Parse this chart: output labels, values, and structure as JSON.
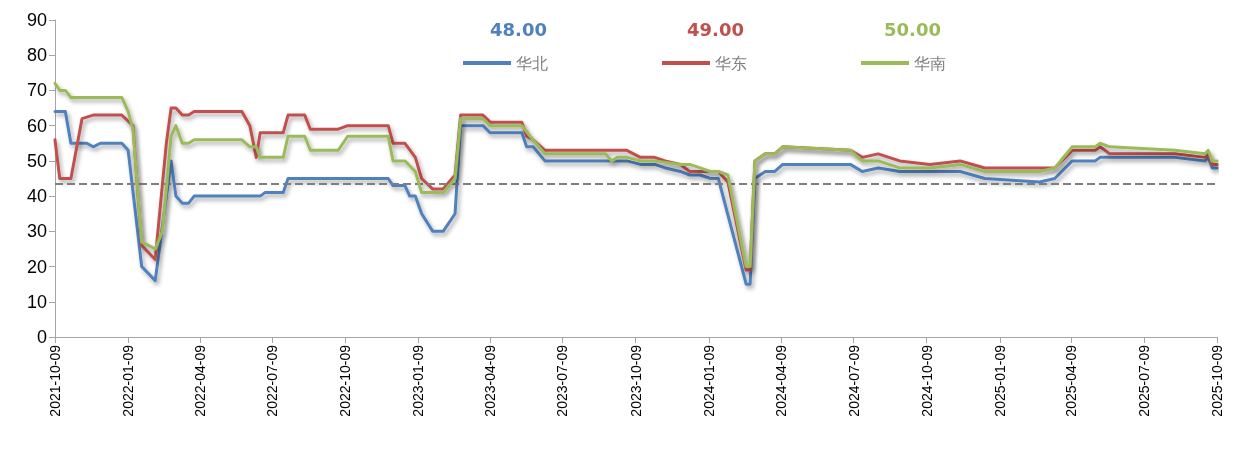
{
  "chart_data": {
    "type": "line",
    "legend": "top",
    "annotations": [
      "48.00",
      "49.00",
      "50.00"
    ],
    "series": [
      {
        "name": "华北",
        "color": "#4f81bd",
        "x": [
          "2021-10-09",
          "2021-10-22",
          "2021-10-29",
          "2021-11-18",
          "2021-11-26",
          "2021-12-05",
          "2022-01-01",
          "2022-01-09",
          "2022-01-26",
          "2022-02-12",
          "2022-03-04",
          "2022-03-10",
          "2022-03-18",
          "2022-03-26",
          "2022-04-02",
          "2022-06-24",
          "2022-06-30",
          "2022-07-23",
          "2022-07-29",
          "2022-12-02",
          "2022-12-08",
          "2022-12-23",
          "2022-12-29",
          "2023-01-05",
          "2023-01-13",
          "2023-01-27",
          "2023-02-09",
          "2023-02-24",
          "2023-03-03",
          "2023-03-31",
          "2023-04-09",
          "2023-05-19",
          "2023-05-25",
          "2023-06-02",
          "2023-06-17",
          "2023-09-28",
          "2023-10-15",
          "2023-11-02",
          "2023-11-15",
          "2023-12-04",
          "2023-12-16",
          "2023-12-29",
          "2024-01-11",
          "2024-01-21",
          "2024-02-25",
          "2024-03-01",
          "2024-03-07",
          "2024-03-20",
          "2024-04-01",
          "2024-04-11",
          "2024-07-05",
          "2024-07-20",
          "2024-08-09",
          "2024-09-05",
          "2024-11-20",
          "2024-12-21",
          "2025-02-28",
          "2025-03-19",
          "2025-04-10",
          "2025-05-09",
          "2025-05-15",
          "2025-05-27",
          "2025-08-17",
          "2025-09-24",
          "2025-09-28",
          "2025-10-03",
          "2025-10-09"
        ],
        "values": [
          64,
          64,
          55,
          55,
          54,
          55,
          55,
          53,
          20,
          16,
          50,
          40,
          38,
          38,
          40,
          40,
          41,
          41,
          45,
          45,
          43,
          43,
          40,
          40,
          35,
          30,
          30,
          35,
          60,
          60,
          58,
          58,
          54,
          54,
          50,
          50,
          49,
          49,
          48,
          47,
          46,
          46,
          45,
          45,
          15,
          15,
          45,
          47,
          47,
          49,
          49,
          47,
          48,
          47,
          47,
          45,
          44,
          45,
          50,
          50,
          51,
          51,
          51,
          50,
          51,
          48,
          48
        ]
      },
      {
        "name": "华东",
        "color": "#c0504d",
        "x": [
          "2021-10-09",
          "2021-10-15",
          "2021-10-29",
          "2021-11-12",
          "2021-11-26",
          "2022-01-01",
          "2022-01-15",
          "2022-01-26",
          "2022-02-12",
          "2022-02-26",
          "2022-03-04",
          "2022-03-10",
          "2022-03-18",
          "2022-03-26",
          "2022-04-02",
          "2022-06-01",
          "2022-06-11",
          "2022-06-19",
          "2022-06-24",
          "2022-07-23",
          "2022-07-29",
          "2022-08-19",
          "2022-08-26",
          "2022-09-30",
          "2022-10-12",
          "2022-12-02",
          "2022-12-08",
          "2022-12-23",
          "2023-01-05",
          "2023-01-13",
          "2023-01-27",
          "2023-02-09",
          "2023-02-24",
          "2023-03-03",
          "2023-03-31",
          "2023-04-09",
          "2023-05-19",
          "2023-05-25",
          "2023-06-02",
          "2023-06-17",
          "2023-09-28",
          "2023-10-15",
          "2023-11-02",
          "2023-11-15",
          "2023-12-04",
          "2023-12-16",
          "2024-01-21",
          "2024-02-02",
          "2024-02-25",
          "2024-03-01",
          "2024-03-07",
          "2024-03-20",
          "2024-04-01",
          "2024-04-11",
          "2024-07-05",
          "2024-07-20",
          "2024-08-09",
          "2024-09-05",
          "2024-10-13",
          "2024-11-20",
          "2024-12-21",
          "2025-03-19",
          "2025-04-10",
          "2025-05-09",
          "2025-05-15",
          "2025-05-27",
          "2025-08-17",
          "2025-09-24",
          "2025-09-28",
          "2025-10-03",
          "2025-10-09"
        ],
        "values": [
          56,
          45,
          45,
          62,
          63,
          63,
          60,
          26,
          22,
          55,
          65,
          65,
          63,
          63,
          64,
          64,
          60,
          51,
          58,
          58,
          63,
          63,
          59,
          59,
          60,
          60,
          55,
          55,
          51,
          45,
          42,
          42,
          46,
          63,
          63,
          61,
          61,
          57,
          56,
          53,
          53,
          51,
          51,
          50,
          49,
          47,
          47,
          44,
          19,
          19,
          50,
          52,
          52,
          54,
          53,
          51,
          52,
          50,
          49,
          50,
          48,
          48,
          53,
          53,
          54,
          52,
          52,
          51,
          52,
          49,
          49
        ]
      },
      {
        "name": "华南",
        "color": "#9bbb59",
        "x": [
          "2021-10-09",
          "2021-10-15",
          "2021-10-22",
          "2021-10-29",
          "2022-01-01",
          "2022-01-09",
          "2022-01-15",
          "2022-01-26",
          "2022-02-12",
          "2022-02-21",
          "2022-03-04",
          "2022-03-10",
          "2022-03-18",
          "2022-03-26",
          "2022-04-02",
          "2022-06-01",
          "2022-06-11",
          "2022-06-19",
          "2022-06-24",
          "2022-07-23",
          "2022-07-29",
          "2022-08-19",
          "2022-08-26",
          "2022-09-30",
          "2022-10-12",
          "2022-12-02",
          "2022-12-08",
          "2022-12-23",
          "2023-01-05",
          "2023-01-13",
          "2023-02-09",
          "2023-02-24",
          "2023-03-03",
          "2023-03-31",
          "2023-04-09",
          "2023-05-19",
          "2023-06-02",
          "2023-06-17",
          "2023-09-01",
          "2023-09-09",
          "2023-09-16",
          "2023-09-28",
          "2023-10-15",
          "2023-11-02",
          "2023-12-04",
          "2023-12-16",
          "2023-12-29",
          "2024-01-11",
          "2024-01-21",
          "2024-02-02",
          "2024-02-25",
          "2024-03-01",
          "2024-03-07",
          "2024-03-20",
          "2024-04-01",
          "2024-04-11",
          "2024-07-05",
          "2024-07-20",
          "2024-08-09",
          "2024-09-05",
          "2024-10-13",
          "2024-11-20",
          "2024-12-21",
          "2025-02-28",
          "2025-03-19",
          "2025-04-10",
          "2025-05-09",
          "2025-05-15",
          "2025-05-27",
          "2025-08-17",
          "2025-09-24",
          "2025-09-28",
          "2025-10-03",
          "2025-10-09"
        ],
        "values": [
          72,
          70,
          70,
          68,
          68,
          64,
          59,
          27,
          25,
          30,
          57,
          60,
          55,
          55,
          56,
          56,
          54,
          54,
          51,
          51,
          57,
          57,
          53,
          53,
          57,
          57,
          50,
          50,
          47,
          41,
          41,
          45,
          62,
          62,
          60,
          60,
          56,
          52,
          52,
          50,
          51,
          51,
          50,
          50,
          49,
          49,
          48,
          47,
          47,
          46,
          20,
          20,
          50,
          52,
          52,
          54,
          53,
          50,
          50,
          48,
          48,
          49,
          47,
          47,
          48,
          54,
          54,
          55,
          54,
          53,
          52,
          53,
          50,
          50
        ]
      }
    ],
    "xlim": [
      "2021-10-09",
      "2025-10-09"
    ],
    "xticks": [
      "2021-10-09",
      "2022-01-09",
      "2022-04-09",
      "2022-07-09",
      "2022-10-09",
      "2023-01-09",
      "2023-04-09",
      "2023-07-09",
      "2023-10-09",
      "2024-01-09",
      "2024-04-09",
      "2024-07-09",
      "2024-10-09",
      "2025-01-09",
      "2025-04-09",
      "2025-07-09",
      "2025-10-09"
    ],
    "ylim": [
      0,
      90
    ],
    "yticks": [
      0,
      10,
      20,
      30,
      40,
      50,
      60,
      70,
      80,
      90
    ],
    "ref_lines": [
      {
        "axis": "y",
        "value": 43.5,
        "color": "#7f7f7f",
        "line_style": "dashed"
      }
    ],
    "marker": "none",
    "line_style": "solid",
    "grid": false
  }
}
